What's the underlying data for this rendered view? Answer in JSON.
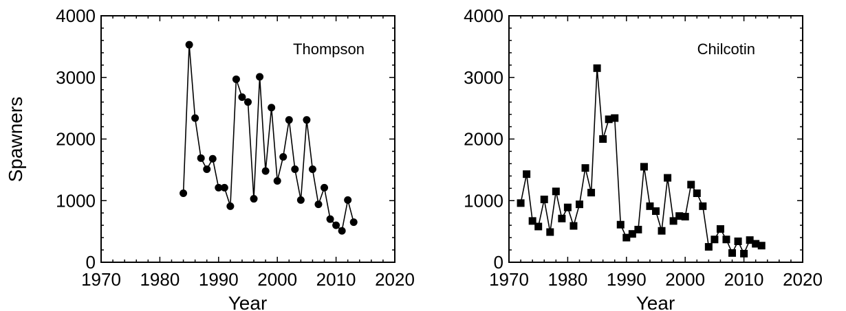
{
  "chart_data": [
    {
      "type": "line",
      "title": "Thompson",
      "xlabel": "Year",
      "ylabel": "Spawners",
      "xlim": [
        1970,
        2020
      ],
      "ylim": [
        0,
        4000
      ],
      "xticks": [
        1970,
        1980,
        1990,
        2000,
        2010,
        2020
      ],
      "yticks": [
        0,
        1000,
        2000,
        3000,
        4000
      ],
      "marker": "circle",
      "grid": false,
      "series": [
        {
          "x": [
            1984,
            1985,
            1986,
            1987,
            1988,
            1989,
            1990,
            1991,
            1992,
            1993,
            1994,
            1995,
            1996,
            1997,
            1998,
            1999,
            2000,
            2001,
            2002,
            2003,
            2004,
            2005,
            2006,
            2007,
            2008,
            2009,
            2010,
            2011,
            2012,
            2013
          ],
          "y": [
            1120,
            3530,
            2340,
            1690,
            1510,
            1680,
            1210,
            1210,
            910,
            2970,
            2680,
            2600,
            1030,
            3010,
            1480,
            2510,
            1320,
            1710,
            2310,
            1510,
            1010,
            2310,
            1510,
            940,
            1210,
            700,
            600,
            510,
            1010,
            650
          ]
        }
      ]
    },
    {
      "type": "line",
      "title": "Chilcotin",
      "xlabel": "Year",
      "ylabel": "",
      "xlim": [
        1970,
        2020
      ],
      "ylim": [
        0,
        4000
      ],
      "xticks": [
        1970,
        1980,
        1990,
        2000,
        2010,
        2020
      ],
      "yticks": [
        0,
        1000,
        2000,
        3000,
        4000
      ],
      "marker": "square",
      "grid": false,
      "series": [
        {
          "x": [
            1972,
            1973,
            1974,
            1975,
            1976,
            1977,
            1978,
            1979,
            1980,
            1981,
            1982,
            1983,
            1984,
            1985,
            1986,
            1987,
            1988,
            1989,
            1990,
            1991,
            1992,
            1993,
            1994,
            1995,
            1996,
            1997,
            1998,
            1999,
            2000,
            2001,
            2002,
            2003,
            2004,
            2005,
            2006,
            2007,
            2008,
            2009,
            2010,
            2011,
            2012,
            2013
          ],
          "y": [
            960,
            1430,
            670,
            580,
            1020,
            490,
            1150,
            710,
            890,
            590,
            940,
            1530,
            1130,
            3150,
            2000,
            2320,
            2340,
            610,
            400,
            460,
            530,
            1550,
            910,
            830,
            510,
            1370,
            670,
            750,
            740,
            1260,
            1120,
            910,
            250,
            370,
            540,
            370,
            150,
            340,
            140,
            360,
            300,
            270
          ]
        }
      ]
    }
  ]
}
